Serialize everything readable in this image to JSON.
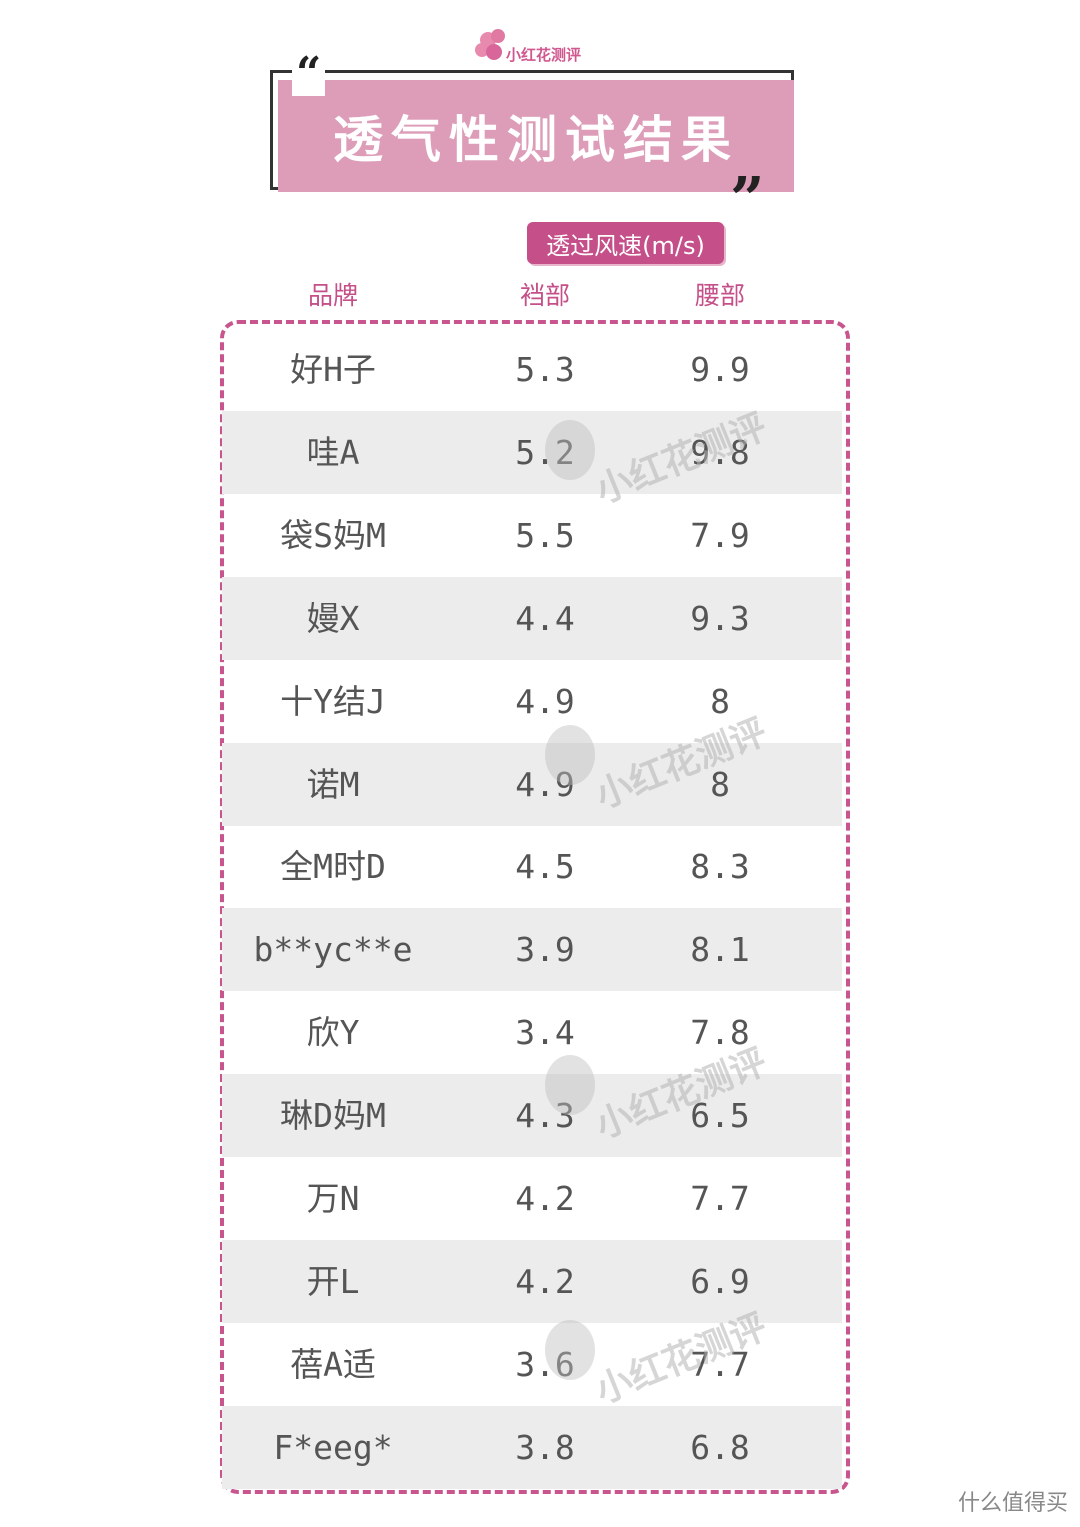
{
  "logo": "小红花测评",
  "title": "透气性测试结果",
  "unit_label": "透过风速(m/s)",
  "table": {
    "headers": [
      "品牌",
      "裆部",
      "腰部"
    ],
    "rows": [
      [
        "好H子",
        5.3,
        9.9
      ],
      [
        "哇A",
        5.2,
        9.8
      ],
      [
        "袋S妈M",
        5.5,
        7.9
      ],
      [
        "嫚X",
        4.4,
        9.3
      ],
      [
        "十Y结J",
        4.9,
        8
      ],
      [
        "诺M",
        4.9,
        8
      ],
      [
        "全M时D",
        4.5,
        8.3
      ],
      [
        "b**yc**e",
        3.9,
        8.1
      ],
      [
        "欣Y",
        3.4,
        7.8
      ],
      [
        "琳D妈M",
        4.3,
        6.5
      ],
      [
        "万N",
        4.2,
        7.7
      ],
      [
        "开L",
        4.2,
        6.9
      ],
      [
        "蓓A适",
        3.6,
        7.7
      ],
      [
        "F*eeg*",
        3.8,
        6.8
      ]
    ]
  },
  "watermark": "小红花测评",
  "footer": "什么值得买"
}
